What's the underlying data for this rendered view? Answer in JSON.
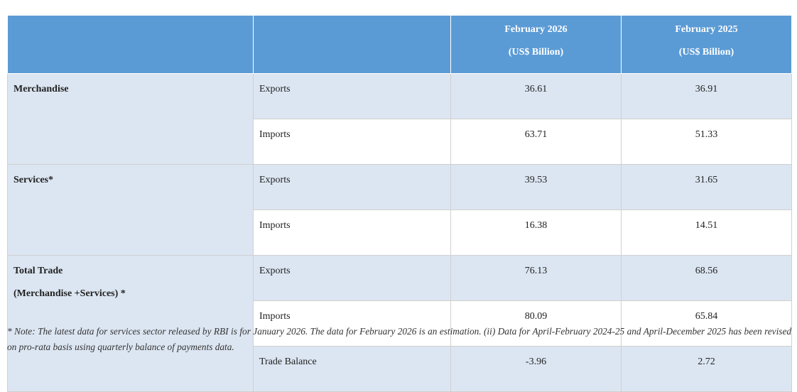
{
  "table": {
    "header": {
      "col1": "",
      "col2": "",
      "col3_line1": "February 2026",
      "col3_line2": "(US$ Billion)",
      "col4_line1": "February 2025",
      "col4_line2": "(US$ Billion)"
    },
    "rows": [
      {
        "category": "Merchandise",
        "category_sub": "",
        "type": "Exports",
        "feb2026": "36.61",
        "feb2025": "36.91"
      },
      {
        "category": "",
        "category_sub": "",
        "type": "Imports",
        "feb2026": "63.71",
        "feb2025": "51.33"
      },
      {
        "category": "Services*",
        "category_sub": "",
        "type": "Exports",
        "feb2026": "39.53",
        "feb2025": "31.65"
      },
      {
        "category": "",
        "category_sub": "",
        "type": "Imports",
        "feb2026": "16.38",
        "feb2025": "14.51"
      },
      {
        "category": "Total Trade",
        "category_sub": "(Merchandise +Services) *",
        "type": "Exports",
        "feb2026": "76.13",
        "feb2025": "68.56"
      },
      {
        "category": "",
        "category_sub": "",
        "type": "Imports",
        "feb2026": "80.09",
        "feb2025": "65.84"
      },
      {
        "category": "",
        "category_sub": "",
        "type": "Trade Balance",
        "feb2026": "-3.96",
        "feb2025": "2.72"
      }
    ]
  },
  "note": "* Note: The latest data for services sector released by RBI is for January 2026. The data for February 2026 is an estimation. (ii) Data for April-February 2024-25 and April-December 2025 has been revised on pro-rata basis using quarterly balance of payments data.",
  "colors": {
    "header_bg": "#5b9bd5",
    "row_blue": "#dce6f2",
    "row_white": "#ffffff",
    "border": "#d0d0d0"
  }
}
